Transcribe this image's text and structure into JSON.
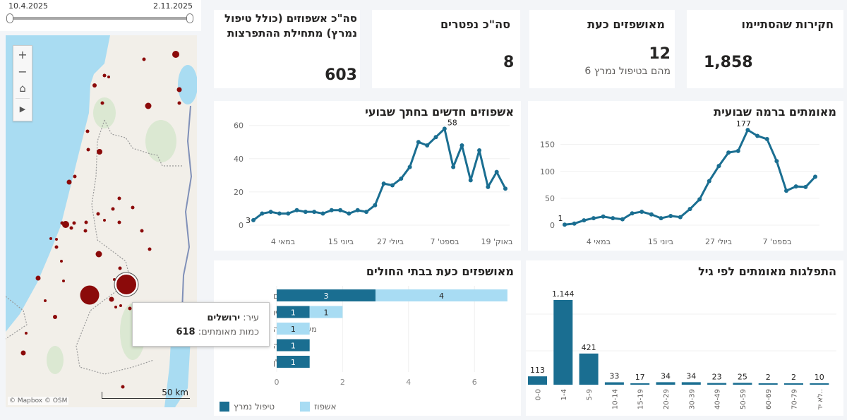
{
  "date_slicer": {
    "start": "10.4.2025",
    "end": "2.11.2025"
  },
  "map": {
    "controls": {
      "zoom_in": "+",
      "zoom_out": "−",
      "home": "⌂",
      "play": "▶"
    },
    "attribution": "© Mapbox  © OSM",
    "scale": "50 km",
    "tooltip": {
      "city_label": "עיר:",
      "city_value": "ירושלים",
      "count_label": "כמות מאומתים:",
      "count_value": "618"
    },
    "bubble_color": "#8b0a0a"
  },
  "kpis": [
    {
      "title": "חקירות שהסתיימו",
      "value": "1,858",
      "sub": ""
    },
    {
      "title": "מאושפזים כעת",
      "value": "12",
      "sub": "מהם בטיפול נמרץ 6"
    },
    {
      "title": "סה\"כ נפטרים",
      "value": "8",
      "sub": ""
    },
    {
      "title": "סה\"כ אשפוזים (כולל טיפול נמרץ) מתחילת ההתפרצות",
      "value": "603",
      "sub": ""
    }
  ],
  "charts": {
    "weekly_confirmed": {
      "title": "מאומתים ברמה שבועית"
    },
    "weekly_hospitalized": {
      "title": "אשפוזים חדשים בחתך שבועי"
    },
    "hospitals": {
      "title": "מאושפזים כעת בבתי החולים",
      "legend": [
        "טיפול נמרץ",
        "אשפוז"
      ]
    },
    "age": {
      "title": "התפלגות מאומתים לפי גיל"
    }
  },
  "colors": {
    "primary": "#1a6e91",
    "light": "#a8dcf3",
    "map_water": "#a9dcf2",
    "map_land": "#f2efe9"
  },
  "chart_data": [
    {
      "type": "line",
      "title": "מאומתים ברמה שבועית",
      "x_ticks": [
        "במאי 4",
        "ביוני 15",
        "ביולי 27",
        "בספט' 7"
      ],
      "y_ticks": [
        0,
        50,
        100,
        150
      ],
      "ylim": [
        0,
        185
      ],
      "values": [
        1,
        3,
        9,
        13,
        16,
        13,
        11,
        22,
        25,
        20,
        13,
        17,
        15,
        30,
        48,
        82,
        110,
        135,
        138,
        177,
        166,
        160,
        119,
        64,
        72,
        71,
        90
      ],
      "annotations": [
        {
          "index": 0,
          "label": "1"
        },
        {
          "index": 19,
          "label": "177"
        }
      ]
    },
    {
      "type": "line",
      "title": "אשפוזים חדשים בחתך שבועי",
      "x_ticks": [
        "במאי 4",
        "ביוני 15",
        "ביולי 27",
        "בספט' 7",
        "באוק' 19"
      ],
      "y_ticks": [
        0,
        20,
        40,
        60
      ],
      "ylim": [
        0,
        62
      ],
      "values": [
        3,
        7,
        8,
        7,
        7,
        9,
        8,
        8,
        7,
        9,
        9,
        7,
        9,
        8,
        12,
        25,
        24,
        28,
        35,
        50,
        48,
        53,
        58,
        35,
        48,
        27,
        45,
        23,
        32,
        22
      ],
      "annotations": [
        {
          "index": 0,
          "label": "3"
        },
        {
          "index": 22,
          "label": "58"
        }
      ]
    },
    {
      "type": "bar",
      "orientation": "horizontal",
      "stacked": true,
      "title": "מאושפזים כעת בבתי החולים",
      "categories": [
        "הדסה עין כרם",
        "זיו",
        "מעיני הישועה",
        "סורוקה",
        "קפלן"
      ],
      "series": [
        {
          "name": "טיפול נמרץ",
          "values": [
            3,
            1,
            0,
            1,
            1
          ]
        },
        {
          "name": "אשפוז",
          "values": [
            4,
            1,
            1,
            0,
            0
          ]
        }
      ],
      "x_ticks": [
        0,
        2,
        4,
        6
      ],
      "xlim": [
        0,
        7
      ]
    },
    {
      "type": "bar",
      "title": "התפלגות מאומתים לפי גיל",
      "categories": [
        "0-0",
        "1-4",
        "5-9",
        "10-14",
        "15-19",
        "20-29",
        "30-39",
        "40-49",
        "50-59",
        "60-69",
        "70-79",
        "לא יד.."
      ],
      "values": [
        113,
        1144,
        421,
        33,
        17,
        34,
        34,
        23,
        25,
        2,
        2,
        10
      ]
    }
  ]
}
